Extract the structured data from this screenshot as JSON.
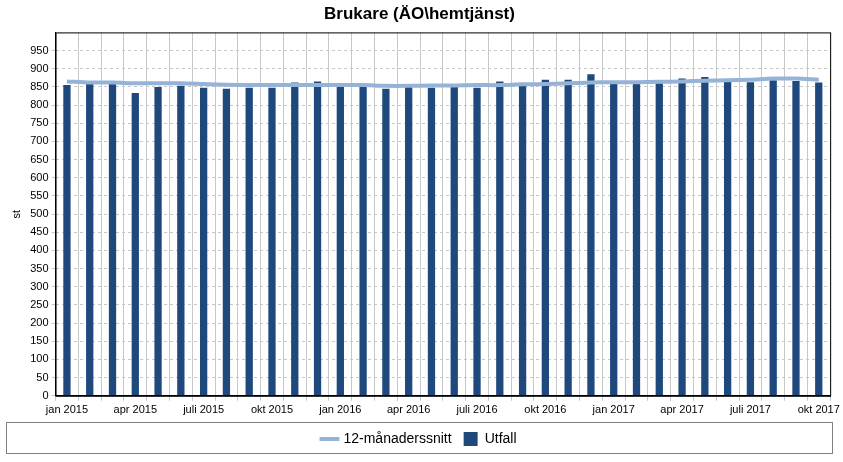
{
  "chart_data": {
    "type": "bar",
    "title": "Brukare (ÄO\\hemtjänst)",
    "y_label": "st",
    "categories": [
      "jan 2015",
      null,
      null,
      "apr 2015",
      null,
      null,
      "juli 2015",
      null,
      null,
      "okt 2015",
      null,
      null,
      "jan 2016",
      null,
      null,
      "apr 2016",
      null,
      null,
      "juli 2016",
      null,
      null,
      "okt 2016",
      null,
      null,
      "jan 2017",
      null,
      null,
      "apr 2017",
      null,
      null,
      "juli 2017",
      null,
      null,
      "okt 2017"
    ],
    "series": [
      {
        "name": "Utfall",
        "type": "bar",
        "color": "#1f497d",
        "values": [
          855,
          860,
          858,
          833,
          850,
          853,
          848,
          845,
          848,
          848,
          862,
          865,
          852,
          850,
          845,
          850,
          848,
          850,
          848,
          865,
          860,
          870,
          870,
          885,
          860,
          858,
          860,
          873,
          877,
          865,
          863,
          868,
          866,
          862
        ]
      },
      {
        "name": "12-månaderssnitt",
        "type": "line",
        "color": "#95b3d7",
        "line_style": "solid",
        "values": [
          865,
          862,
          862,
          860,
          860,
          860,
          858,
          856,
          855,
          855,
          855,
          855,
          855,
          855,
          853,
          853,
          854,
          854,
          855,
          855,
          857,
          858,
          860,
          862,
          863,
          863,
          864,
          865,
          867,
          868,
          870,
          873,
          873,
          870
        ]
      }
    ],
    "ylim": [
      0,
      1000
    ],
    "yticks": [
      0,
      50,
      100,
      150,
      200,
      250,
      300,
      350,
      400,
      450,
      500,
      550,
      600,
      650,
      700,
      750,
      800,
      850,
      900,
      950
    ],
    "grid": true,
    "legend": "bottom"
  }
}
